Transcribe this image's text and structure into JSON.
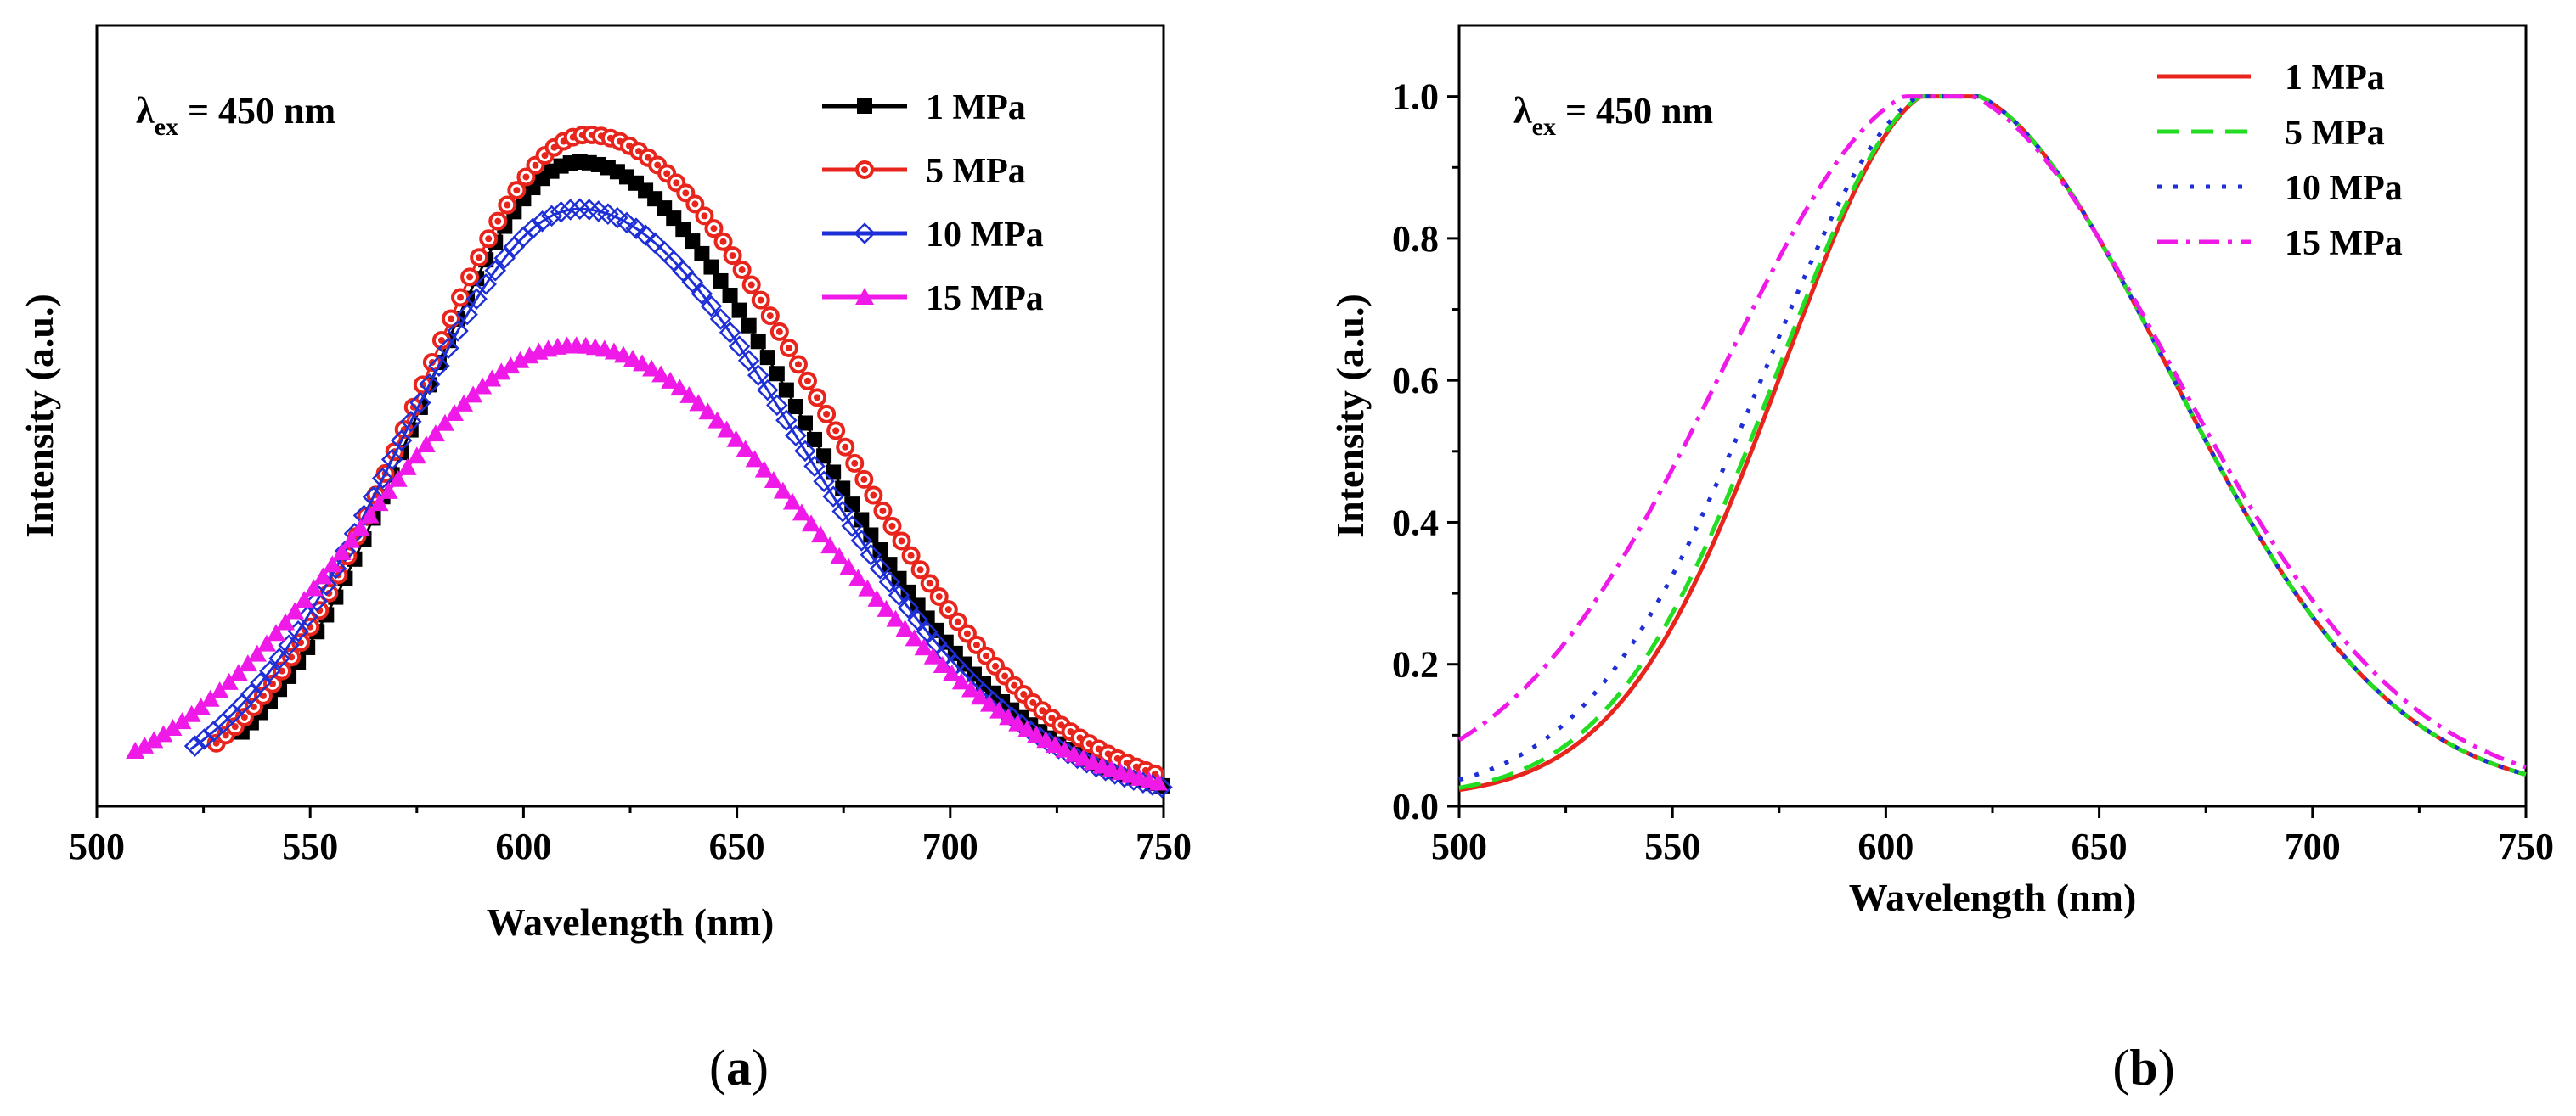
{
  "chart_data": [
    {
      "type": "line",
      "panel_caption": "(a)",
      "caption_open": "(",
      "caption_letter": "a",
      "caption_close": ")",
      "xlabel": "Wavelength (nm)",
      "ylabel": "Intensity (a.u.)",
      "xlim": [
        500,
        750
      ],
      "ylim": [
        0,
        1.0
      ],
      "xticks": [
        500,
        550,
        600,
        650,
        700,
        750
      ],
      "yticks": [],
      "annotation": {
        "symbol": "λ",
        "subscript": "ex",
        "rest": " = 450 nm"
      },
      "legend_position": "top-right",
      "series": [
        {
          "name": "1 MPa",
          "color": "#000000",
          "marker": "square",
          "peak_x": 613,
          "peak_y": 0.825,
          "left_width": 38,
          "right_width": 52,
          "x_start": 533,
          "x_end": 750
        },
        {
          "name": "5 MPa",
          "color": "#e8251c",
          "marker": "circle",
          "peak_x": 615,
          "peak_y": 0.86,
          "left_width": 40,
          "right_width": 54,
          "x_start": 527,
          "x_end": 750
        },
        {
          "name": "10 MPa",
          "color": "#1f2fd6",
          "marker": "diamond-open",
          "peak_x": 613,
          "peak_y": 0.765,
          "left_width": 42,
          "right_width": 52,
          "x_start": 522,
          "x_end": 750
        },
        {
          "name": "15 MPa",
          "color": "#f01ae8",
          "marker": "triangle",
          "peak_x": 612,
          "peak_y": 0.59,
          "left_width": 50,
          "right_width": 56,
          "x_start": 508,
          "x_end": 750
        }
      ]
    },
    {
      "type": "line",
      "panel_caption": "(b)",
      "caption_open": "(",
      "caption_letter": "b",
      "caption_close": ")",
      "xlabel": "Wavelength (nm)",
      "ylabel": "Intensity (a.u.)",
      "xlim": [
        500,
        750
      ],
      "ylim": [
        0,
        1.1
      ],
      "xticks": [
        500,
        550,
        600,
        650,
        700,
        750
      ],
      "yticks": [
        0.0,
        0.2,
        0.4,
        0.6,
        0.8,
        1.0
      ],
      "ytick_labels": [
        "0.0",
        "0.2",
        "0.4",
        "0.6",
        "0.8",
        "1.0"
      ],
      "annotation": {
        "symbol": "λ",
        "subscript": "ex",
        "rest": " = 450 nm"
      },
      "legend_position": "top-right",
      "series": [
        {
          "name": "1 MPa",
          "color": "#e8251c",
          "dash": "solid",
          "peak_x": 614,
          "peak_y": 1.0,
          "left_width": 38,
          "right_width": 52,
          "x_start": 500,
          "x_end": 750
        },
        {
          "name": "5 MPa",
          "color": "#22dd22",
          "dash": "dash",
          "peak_x": 614,
          "peak_y": 1.0,
          "left_width": 39,
          "right_width": 52,
          "x_start": 500,
          "x_end": 750
        },
        {
          "name": "10 MPa",
          "color": "#1f2fd6",
          "dash": "dot",
          "peak_x": 614,
          "peak_y": 1.0,
          "left_width": 42,
          "right_width": 52,
          "x_start": 500,
          "x_end": 750
        },
        {
          "name": "15 MPa",
          "color": "#f01ae8",
          "dash": "dashdot",
          "peak_x": 612,
          "peak_y": 1.0,
          "left_width": 50,
          "right_width": 55,
          "x_start": 500,
          "x_end": 750
        }
      ]
    }
  ]
}
